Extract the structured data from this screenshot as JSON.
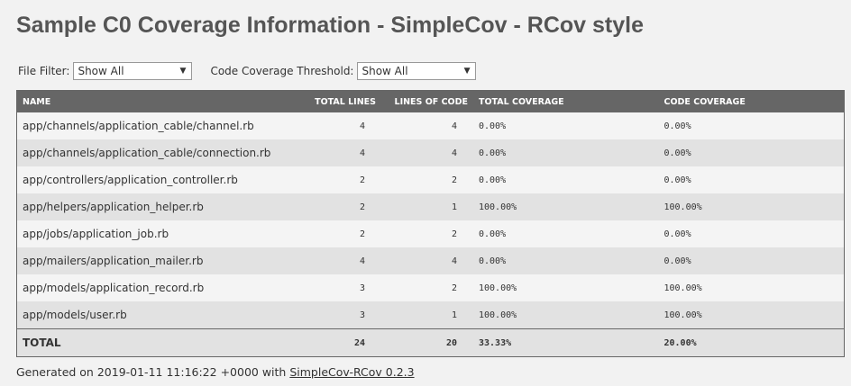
{
  "header": {
    "title": "Sample C0 Coverage Information - SimpleCov - RCov style"
  },
  "filters": [
    {
      "label": "File Filter:",
      "value": "Show All"
    },
    {
      "label": "Code Coverage Threshold:",
      "value": "Show All"
    }
  ],
  "table": {
    "columns": [
      "NAME",
      "TOTAL LINES",
      "LINES OF CODE",
      "TOTAL COVERAGE",
      "CODE COVERAGE"
    ],
    "rows": [
      {
        "name": "app/channels/application_cable/channel.rb",
        "total_lines": 4,
        "lines_of_code": 4,
        "total_coverage": {
          "value": 0,
          "label": "0.00%"
        },
        "code_coverage": {
          "value": 0,
          "label": "0.00%"
        }
      },
      {
        "name": "app/channels/application_cable/connection.rb",
        "total_lines": 4,
        "lines_of_code": 4,
        "total_coverage": {
          "value": 0,
          "label": "0.00%"
        },
        "code_coverage": {
          "value": 0,
          "label": "0.00%"
        }
      },
      {
        "name": "app/controllers/application_controller.rb",
        "total_lines": 2,
        "lines_of_code": 2,
        "total_coverage": {
          "value": 0,
          "label": "0.00%"
        },
        "code_coverage": {
          "value": 0,
          "label": "0.00%"
        }
      },
      {
        "name": "app/helpers/application_helper.rb",
        "total_lines": 2,
        "lines_of_code": 1,
        "total_coverage": {
          "value": 100,
          "label": "100.00%"
        },
        "code_coverage": {
          "value": 100,
          "label": "100.00%"
        }
      },
      {
        "name": "app/jobs/application_job.rb",
        "total_lines": 2,
        "lines_of_code": 2,
        "total_coverage": {
          "value": 0,
          "label": "0.00%"
        },
        "code_coverage": {
          "value": 0,
          "label": "0.00%"
        }
      },
      {
        "name": "app/mailers/application_mailer.rb",
        "total_lines": 4,
        "lines_of_code": 4,
        "total_coverage": {
          "value": 0,
          "label": "0.00%"
        },
        "code_coverage": {
          "value": 0,
          "label": "0.00%"
        }
      },
      {
        "name": "app/models/application_record.rb",
        "total_lines": 3,
        "lines_of_code": 2,
        "total_coverage": {
          "value": 100,
          "label": "100.00%"
        },
        "code_coverage": {
          "value": 100,
          "label": "100.00%"
        }
      },
      {
        "name": "app/models/user.rb",
        "total_lines": 3,
        "lines_of_code": 1,
        "total_coverage": {
          "value": 100,
          "label": "100.00%"
        },
        "code_coverage": {
          "value": 100,
          "label": "100.00%"
        }
      }
    ],
    "total": {
      "name": "TOTAL",
      "total_lines": 24,
      "lines_of_code": 20,
      "total_coverage": {
        "value": 33.33,
        "label": "33.33%"
      },
      "code_coverage": {
        "value": 20.0,
        "label": "20.00%"
      }
    }
  },
  "footer": {
    "text": "Generated on 2019-01-11 11:16:22 +0000 with",
    "link": "SimpleCov-RCov 0.2.3"
  }
}
